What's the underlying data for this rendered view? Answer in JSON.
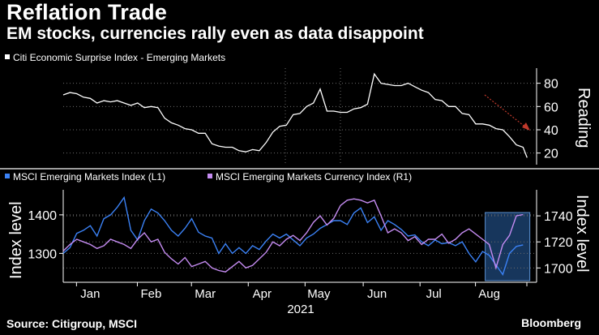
{
  "title": "Reflation Trade",
  "subtitle": "EM stocks, currencies rally even as data disappoint",
  "footer": {
    "source": "Source: Citigroup, MSCI",
    "brand": "Bloomberg"
  },
  "colors": {
    "background": "#000000",
    "surprise_line": "#ffffff",
    "msci_index": "#3b82f6",
    "msci_currency": "#c58cf2",
    "highlight_fill": "#2a63a8",
    "arrow": "#c0392b",
    "grid": "#6b6b6b"
  },
  "chart_data": [
    {
      "type": "line",
      "panel": "top",
      "legend": [
        "Citi Economic Surprise Index - Emerging Markets"
      ],
      "ylabel": "Reading",
      "ylabel_side": "right",
      "yticks": [
        20,
        40,
        60,
        80
      ],
      "ylim": [
        10,
        93
      ],
      "x_range_weeks": [
        0,
        35
      ],
      "series": [
        {
          "name": "Citi Economic Surprise Index - Emerging Markets",
          "x": [
            0,
            0.5,
            1,
            1.5,
            2,
            2.5,
            3,
            3.5,
            4,
            4.5,
            5,
            5.5,
            6,
            6.5,
            7,
            7.5,
            8,
            8.5,
            9,
            9.5,
            10,
            10.5,
            11,
            11.5,
            12,
            12.5,
            13,
            13.5,
            14,
            14.5,
            15,
            15.5,
            16,
            16.5,
            17,
            17.5,
            18,
            18.5,
            19,
            19.5,
            20,
            20.5,
            21,
            21.5,
            22,
            22.5,
            23,
            23.5,
            24,
            24.5,
            25,
            25.5,
            26,
            26.5,
            27,
            27.5,
            28,
            28.5,
            29,
            29.5,
            30,
            30.5,
            31,
            31.5,
            32,
            32.5,
            33,
            33.5,
            34,
            34.3
          ],
          "values": [
            70,
            72,
            71,
            68,
            67,
            63,
            65,
            64,
            65,
            63,
            61,
            63,
            59,
            60,
            59,
            50,
            46,
            44,
            41,
            40,
            37,
            37,
            28,
            26,
            25,
            25,
            22,
            21,
            23,
            22,
            29,
            38,
            43,
            44,
            53,
            54,
            60,
            63,
            75,
            56,
            56,
            55,
            55,
            58,
            59,
            62,
            88,
            80,
            79,
            78,
            78,
            80,
            77,
            74,
            72,
            66,
            65,
            60,
            60,
            54,
            53,
            45,
            45,
            44,
            41,
            40,
            34,
            27,
            25,
            16
          ]
        }
      ]
    },
    {
      "type": "line",
      "panel": "bottom",
      "legend": [
        "MSCI Emerging Markets Index  (L1)",
        "MSCI Emerging Markets Currency Index  (R1)"
      ],
      "ylabel_left": "Index level",
      "ylabel_right": "Index level",
      "yticks_left": [
        1300,
        1400
      ],
      "ylim_left": [
        1225,
        1465
      ],
      "yticks_right": [
        1700,
        1720,
        1740
      ],
      "ylim_right": [
        1689,
        1760
      ],
      "x_range_weeks": [
        0,
        35
      ],
      "xticks": [
        "Jan",
        "Feb",
        "Mar",
        "Apr",
        "May",
        "Jun",
        "Jul",
        "Aug"
      ],
      "xtick_weeks": [
        2,
        6.5,
        10.5,
        14.7,
        18.9,
        23.2,
        27.4,
        31.5
      ],
      "year_label": "2021",
      "highlight_weeks": [
        31.2,
        34.5
      ],
      "series": [
        {
          "name": "MSCI Emerging Markets Index  (L1)",
          "axis": "left",
          "x": [
            0,
            0.5,
            1,
            1.5,
            2,
            2.5,
            3,
            3.5,
            4,
            4.5,
            5,
            5.5,
            6,
            6.5,
            7,
            7.5,
            8,
            8.5,
            9,
            9.5,
            10,
            10.5,
            11,
            11.5,
            12,
            12.5,
            13,
            13.5,
            14,
            14.5,
            15,
            15.5,
            16,
            16.5,
            17,
            17.5,
            18,
            18.5,
            19,
            19.5,
            20,
            20.5,
            21,
            21.5,
            22,
            22.5,
            23,
            23.5,
            24,
            24.5,
            25,
            25.5,
            26,
            26.5,
            27,
            27.5,
            28,
            28.5,
            29,
            29.5,
            30,
            30.5,
            31,
            31.5,
            32,
            32.5,
            33,
            33.5,
            34
          ],
          "values": [
            1300,
            1315,
            1352,
            1360,
            1372,
            1345,
            1390,
            1400,
            1420,
            1445,
            1360,
            1335,
            1385,
            1415,
            1405,
            1385,
            1360,
            1345,
            1365,
            1390,
            1355,
            1345,
            1340,
            1300,
            1325,
            1300,
            1315,
            1300,
            1320,
            1310,
            1332,
            1350,
            1340,
            1350,
            1335,
            1320,
            1340,
            1350,
            1365,
            1375,
            1385,
            1385,
            1375,
            1405,
            1418,
            1380,
            1395,
            1360,
            1385,
            1375,
            1362,
            1345,
            1348,
            1330,
            1320,
            1335,
            1325,
            1328,
            1320,
            1330,
            1300,
            1278,
            1305,
            1295,
            1270,
            1245,
            1300,
            1318,
            1322
          ]
        },
        {
          "name": "MSCI Emerging Markets Currency Index  (R1)",
          "axis": "right",
          "x": [
            0,
            0.5,
            1,
            1.5,
            2,
            2.5,
            3,
            3.5,
            4,
            4.5,
            5,
            5.5,
            6,
            6.5,
            7,
            7.5,
            8,
            8.5,
            9,
            9.5,
            10,
            10.5,
            11,
            11.5,
            12,
            12.5,
            13,
            13.5,
            14,
            14.5,
            15,
            15.5,
            16,
            16.5,
            17,
            17.5,
            18,
            18.5,
            19,
            19.5,
            20,
            20.5,
            21,
            21.5,
            22,
            22.5,
            23,
            23.5,
            24,
            24.5,
            25,
            25.5,
            26,
            26.5,
            27,
            27.5,
            28,
            28.5,
            29,
            29.5,
            30,
            30.5,
            31,
            31.5,
            32,
            32.5,
            33,
            33.5,
            34
          ],
          "values": [
            1713,
            1718,
            1722,
            1720,
            1718,
            1715,
            1717,
            1722,
            1720,
            1718,
            1715,
            1722,
            1727,
            1720,
            1722,
            1712,
            1707,
            1703,
            1708,
            1701,
            1703,
            1705,
            1700,
            1698,
            1697,
            1701,
            1705,
            1700,
            1702,
            1707,
            1712,
            1720,
            1717,
            1722,
            1725,
            1721,
            1727,
            1735,
            1740,
            1733,
            1738,
            1748,
            1752,
            1753,
            1752,
            1750,
            1752,
            1740,
            1727,
            1730,
            1727,
            1721,
            1724,
            1718,
            1722,
            1722,
            1726,
            1719,
            1722,
            1727,
            1730,
            1726,
            1722,
            1718,
            1700,
            1718,
            1725,
            1740,
            1741
          ]
        }
      ]
    }
  ]
}
